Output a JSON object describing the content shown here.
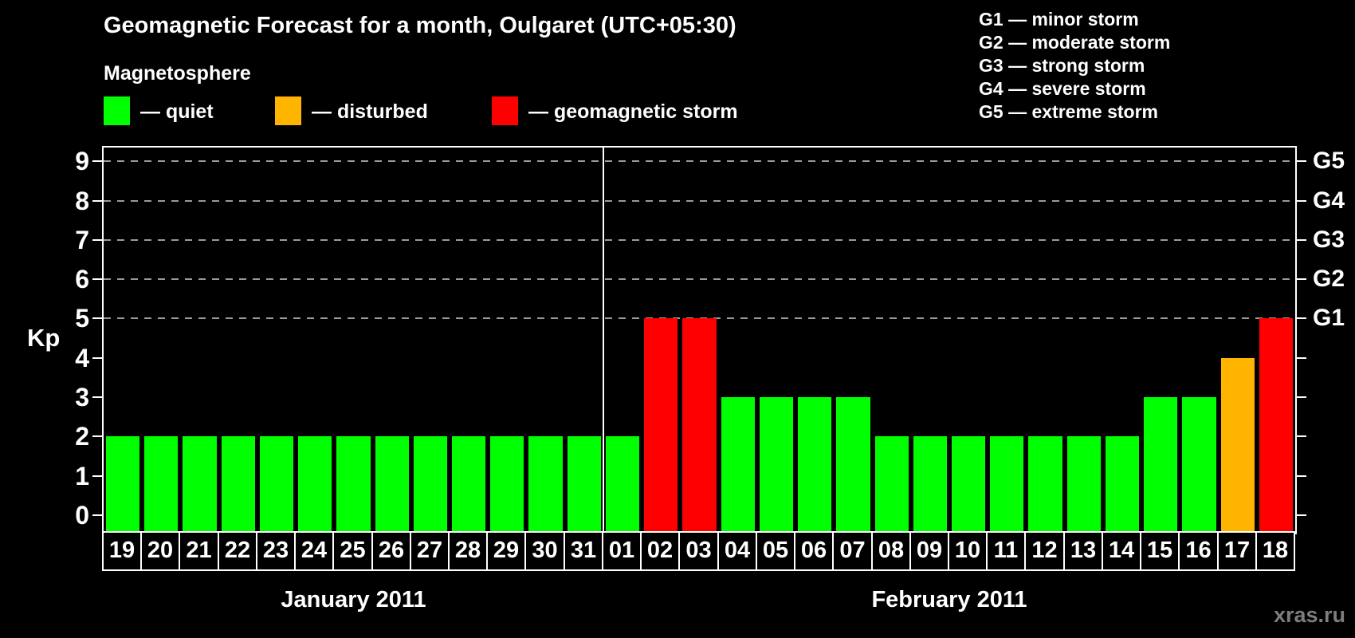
{
  "title": "Geomagnetic Forecast for a month, Oulgaret (UTC+05:30)",
  "watermark": "xras.ru",
  "legend": {
    "heading": "Magnetosphere",
    "items": [
      {
        "key": "quiet",
        "label": "— quiet",
        "color": "#00ff00"
      },
      {
        "key": "disturbed",
        "label": "— disturbed",
        "color": "#ffb400"
      },
      {
        "key": "storm",
        "label": "— geomagnetic storm",
        "color": "#ff0000"
      }
    ]
  },
  "storm_scale": [
    {
      "code": "G1",
      "label": "G1 — minor storm"
    },
    {
      "code": "G2",
      "label": "G2 — moderate storm"
    },
    {
      "code": "G3",
      "label": "G3 — strong storm"
    },
    {
      "code": "G4",
      "label": "G4 — severe storm"
    },
    {
      "code": "G5",
      "label": "G5 — extreme storm"
    }
  ],
  "chart_data": {
    "type": "bar",
    "ylabel": "Kp",
    "ylim": [
      0,
      9
    ],
    "yticks": [
      0,
      1,
      2,
      3,
      4,
      5,
      6,
      7,
      8,
      9
    ],
    "gridlines_at": [
      5,
      6,
      7,
      8,
      9
    ],
    "grid": "dashed",
    "right_axis_labels": [
      {
        "kp": 5,
        "label": "G1"
      },
      {
        "kp": 6,
        "label": "G2"
      },
      {
        "kp": 7,
        "label": "G3"
      },
      {
        "kp": 8,
        "label": "G4"
      },
      {
        "kp": 9,
        "label": "G5"
      }
    ],
    "status_colors": {
      "quiet": "#00ff00",
      "disturbed": "#ffb400",
      "storm": "#ff0000"
    },
    "months": [
      {
        "label": "January 2011",
        "days": 13
      },
      {
        "label": "February 2011",
        "days": 18
      }
    ],
    "bars": [
      {
        "day": "19",
        "kp": 2,
        "status": "quiet"
      },
      {
        "day": "20",
        "kp": 2,
        "status": "quiet"
      },
      {
        "day": "21",
        "kp": 2,
        "status": "quiet"
      },
      {
        "day": "22",
        "kp": 2,
        "status": "quiet"
      },
      {
        "day": "23",
        "kp": 2,
        "status": "quiet"
      },
      {
        "day": "24",
        "kp": 2,
        "status": "quiet"
      },
      {
        "day": "25",
        "kp": 2,
        "status": "quiet"
      },
      {
        "day": "26",
        "kp": 2,
        "status": "quiet"
      },
      {
        "day": "27",
        "kp": 2,
        "status": "quiet"
      },
      {
        "day": "28",
        "kp": 2,
        "status": "quiet"
      },
      {
        "day": "29",
        "kp": 2,
        "status": "quiet"
      },
      {
        "day": "30",
        "kp": 2,
        "status": "quiet"
      },
      {
        "day": "31",
        "kp": 2,
        "status": "quiet"
      },
      {
        "day": "01",
        "kp": 2,
        "status": "quiet"
      },
      {
        "day": "02",
        "kp": 5,
        "status": "storm"
      },
      {
        "day": "03",
        "kp": 5,
        "status": "storm"
      },
      {
        "day": "04",
        "kp": 3,
        "status": "quiet"
      },
      {
        "day": "05",
        "kp": 3,
        "status": "quiet"
      },
      {
        "day": "06",
        "kp": 3,
        "status": "quiet"
      },
      {
        "day": "07",
        "kp": 3,
        "status": "quiet"
      },
      {
        "day": "08",
        "kp": 2,
        "status": "quiet"
      },
      {
        "day": "09",
        "kp": 2,
        "status": "quiet"
      },
      {
        "day": "10",
        "kp": 2,
        "status": "quiet"
      },
      {
        "day": "11",
        "kp": 2,
        "status": "quiet"
      },
      {
        "day": "12",
        "kp": 2,
        "status": "quiet"
      },
      {
        "day": "13",
        "kp": 2,
        "status": "quiet"
      },
      {
        "day": "14",
        "kp": 2,
        "status": "quiet"
      },
      {
        "day": "15",
        "kp": 3,
        "status": "quiet"
      },
      {
        "day": "16",
        "kp": 3,
        "status": "quiet"
      },
      {
        "day": "17",
        "kp": 4,
        "status": "disturbed"
      },
      {
        "day": "18",
        "kp": 5,
        "status": "storm"
      }
    ]
  }
}
